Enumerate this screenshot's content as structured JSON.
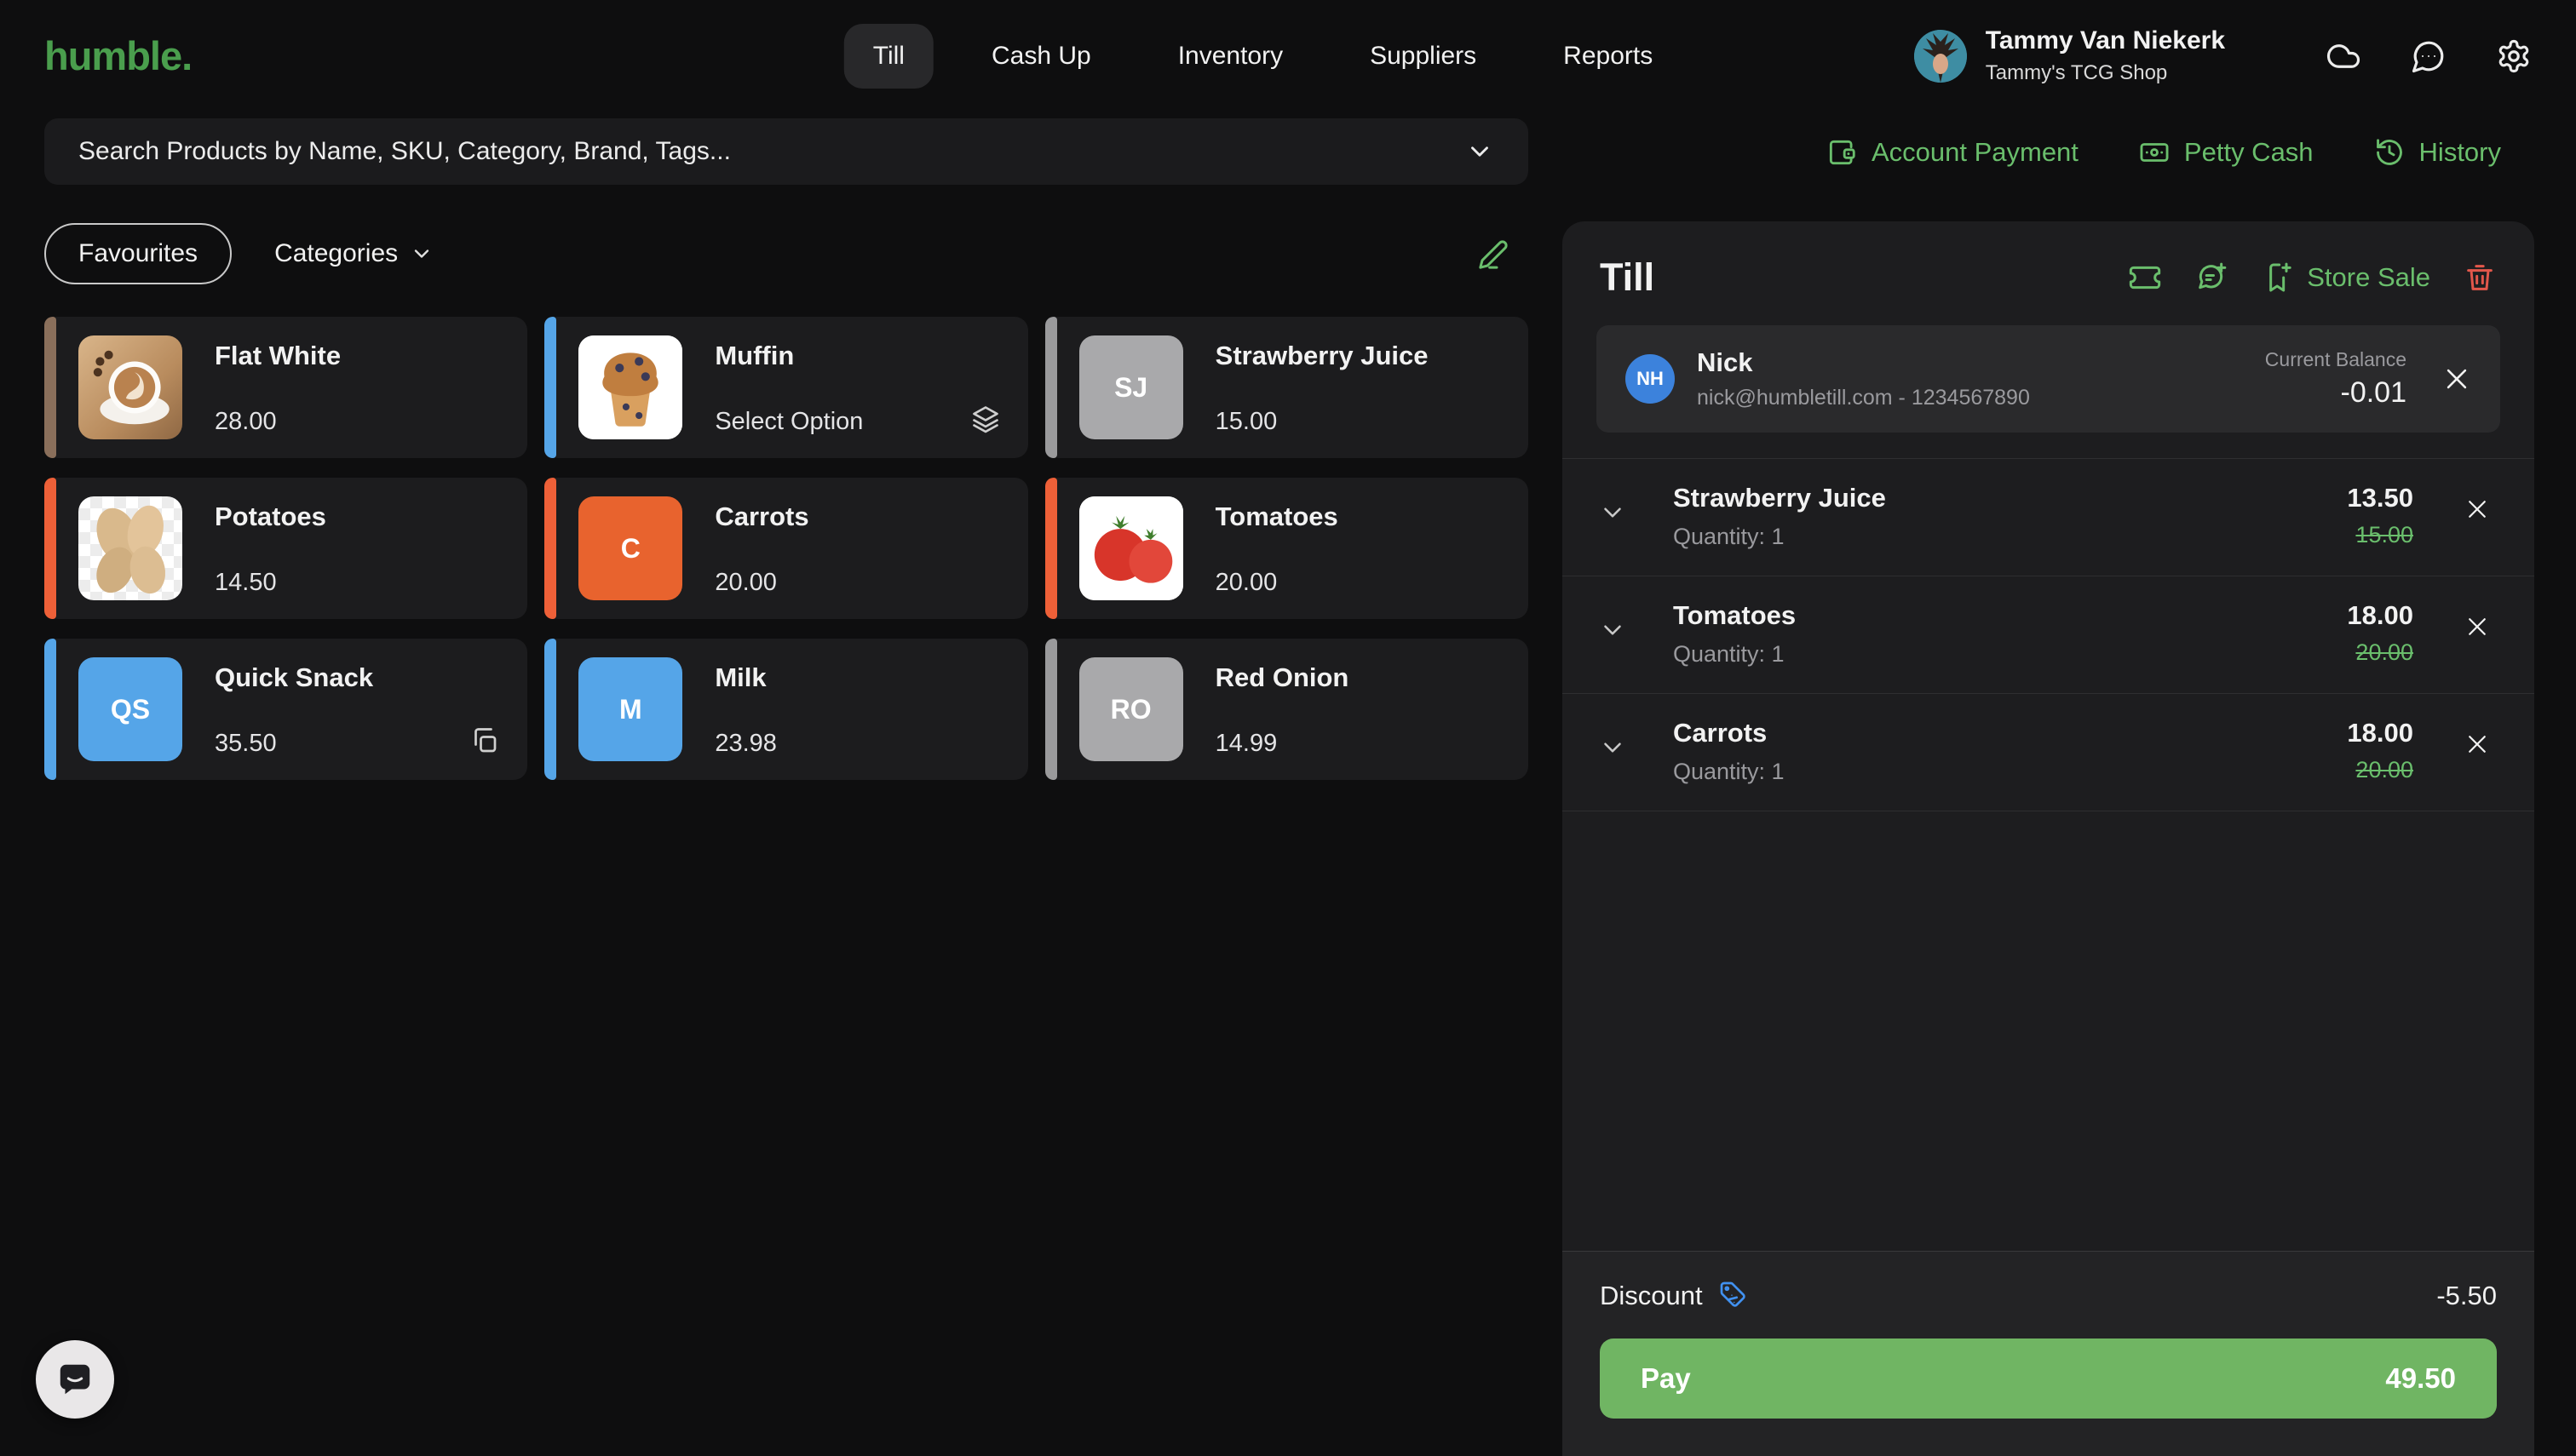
{
  "brand": {
    "logo": "humble."
  },
  "nav": {
    "tabs": [
      {
        "id": "till",
        "label": "Till",
        "active": true
      },
      {
        "id": "cash-up",
        "label": "Cash Up",
        "active": false
      },
      {
        "id": "inventory",
        "label": "Inventory",
        "active": false
      },
      {
        "id": "suppliers",
        "label": "Suppliers",
        "active": false
      },
      {
        "id": "reports",
        "label": "Reports",
        "active": false
      }
    ]
  },
  "user": {
    "name": "Tammy Van Niekerk",
    "shop": "Tammy's TCG Shop"
  },
  "search": {
    "placeholder": "Search Products by Name, SKU, Category, Brand, Tags..."
  },
  "quick_actions": [
    {
      "id": "account-payment",
      "label": "Account Payment",
      "icon": "wallet-icon"
    },
    {
      "id": "petty-cash",
      "label": "Petty Cash",
      "icon": "banknote-icon"
    },
    {
      "id": "history",
      "label": "History",
      "icon": "history-icon"
    }
  ],
  "filters": {
    "favourites_label": "Favourites",
    "categories_label": "Categories"
  },
  "products": [
    {
      "name": "Flat White",
      "price_label": "28.00",
      "accent": "#8a6f5b",
      "tile": {
        "kind": "coffee"
      },
      "corner_icon": null
    },
    {
      "name": "Muffin",
      "price_label": "Select Option",
      "accent": "#55a5e8",
      "tile": {
        "kind": "muffin"
      },
      "corner_icon": "layers-icon"
    },
    {
      "name": "Strawberry Juice",
      "price_label": "15.00",
      "accent": "#9a9a9c",
      "tile": {
        "kind": "initials",
        "initials": "SJ",
        "color": "#a9a9ab"
      },
      "corner_icon": null
    },
    {
      "name": "Potatoes",
      "price_label": "14.50",
      "accent": "#ee6038",
      "tile": {
        "kind": "potatoes"
      },
      "corner_icon": null
    },
    {
      "name": "Carrots",
      "price_label": "20.00",
      "accent": "#ee6038",
      "tile": {
        "kind": "initials",
        "initials": "C",
        "color": "#e8632e"
      },
      "corner_icon": null
    },
    {
      "name": "Tomatoes",
      "price_label": "20.00",
      "accent": "#ee6038",
      "tile": {
        "kind": "tomatoes"
      },
      "corner_icon": null
    },
    {
      "name": "Quick Snack",
      "price_label": "35.50",
      "accent": "#55a5e8",
      "tile": {
        "kind": "initials",
        "initials": "QS",
        "color": "#55a5e8"
      },
      "corner_icon": "copy-icon"
    },
    {
      "name": "Milk",
      "price_label": "23.98",
      "accent": "#55a5e8",
      "tile": {
        "kind": "initials",
        "initials": "M",
        "color": "#55a5e8"
      },
      "corner_icon": null
    },
    {
      "name": "Red Onion",
      "price_label": "14.99",
      "accent": "#9a9a9c",
      "tile": {
        "kind": "initials",
        "initials": "RO",
        "color": "#a9a9ab"
      },
      "corner_icon": null
    }
  ],
  "till": {
    "title": "Till",
    "store_sale_label": "Store Sale",
    "customer": {
      "initials": "NH",
      "name": "Nick",
      "details": "nick@humbletill.com - 1234567890",
      "balance_label": "Current Balance",
      "balance_value": "-0.01"
    },
    "items": [
      {
        "name": "Strawberry Juice",
        "quantity_label": "Quantity: 1",
        "price": "13.50",
        "original_price": "15.00"
      },
      {
        "name": "Tomatoes",
        "quantity_label": "Quantity: 1",
        "price": "18.00",
        "original_price": "20.00"
      },
      {
        "name": "Carrots",
        "quantity_label": "Quantity: 1",
        "price": "18.00",
        "original_price": "20.00"
      }
    ],
    "discount": {
      "label": "Discount",
      "value": "-5.50"
    },
    "pay": {
      "label": "Pay",
      "amount": "49.50"
    }
  },
  "colors": {
    "accent_green": "#6abe6c",
    "logo_green": "#4a9e4d",
    "pay_green": "#70b563",
    "danger_red": "#e2574b",
    "info_blue": "#4191f0",
    "tile_orange": "#e8632e",
    "tile_blue": "#55a5e8",
    "tile_gray": "#a9a9ab"
  }
}
